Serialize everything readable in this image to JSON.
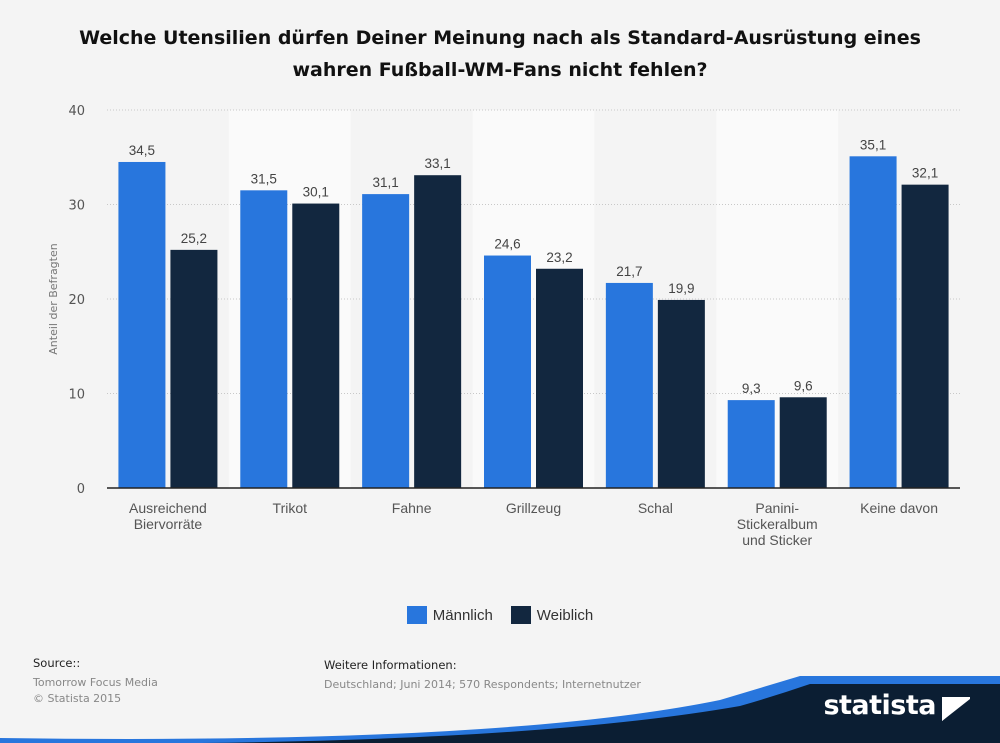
{
  "title": "Welche Utensilien dürfen Deiner Meinung nach als Standard-Ausrüstung eines wahren Fußball-WM-Fans nicht fehlen?",
  "chart_data": {
    "type": "bar",
    "title": "Welche Utensilien dürfen Deiner Meinung nach als Standard-Ausrüstung eines wahren Fußball-WM-Fans nicht fehlen?",
    "xlabel": "",
    "ylabel": "Anteil der Befragten",
    "ylim": [
      0,
      40
    ],
    "yticks": [
      0,
      10,
      20,
      30,
      40
    ],
    "grid": true,
    "legend_position": "bottom",
    "categories": [
      [
        "Ausreichend",
        "Biervorräte"
      ],
      [
        "Trikot"
      ],
      [
        "Fahne"
      ],
      [
        "Grillzeug"
      ],
      [
        "Schal"
      ],
      [
        "Panini-",
        "Stickeralbum",
        "und Sticker"
      ],
      [
        "Keine davon"
      ]
    ],
    "series": [
      {
        "name": "Männlich",
        "color": "#2876dd",
        "values": [
          34.5,
          31.5,
          31.1,
          24.6,
          21.7,
          9.3,
          35.1
        ],
        "labels": [
          "34,5",
          "31,5",
          "31,1",
          "24,6",
          "21,7",
          "9,3",
          "35,1"
        ]
      },
      {
        "name": "Weiblich",
        "color": "#12273f",
        "values": [
          25.2,
          30.1,
          33.1,
          23.2,
          19.9,
          9.6,
          32.1
        ],
        "labels": [
          "25,2",
          "30,1",
          "33,1",
          "23,2",
          "19,9",
          "9,6",
          "32,1"
        ]
      }
    ]
  },
  "source": {
    "heading": "Source::",
    "lines": [
      "Tomorrow Focus Media",
      "© Statista 2015"
    ]
  },
  "info": {
    "heading": "Weitere Informationen:",
    "text": "Deutschland; Juni 2014; 570 Respondents; Internetnutzer"
  },
  "logo": {
    "text": "statista",
    "color": "#2876dd",
    "dark": "#0b1e33"
  }
}
